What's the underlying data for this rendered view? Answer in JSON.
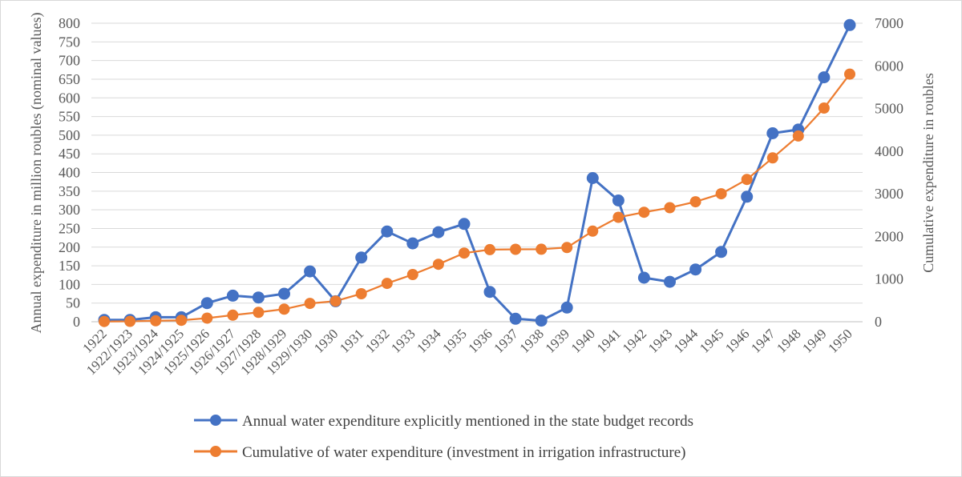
{
  "chart_data": {
    "type": "line",
    "categories": [
      "1922",
      "1922/1923",
      "1923/1924",
      "1924/1925",
      "1925/1926",
      "1926/1927",
      "1927/1928",
      "1928/1929",
      "1929/1930",
      "1930",
      "1931",
      "1932",
      "1933",
      "1934",
      "1935",
      "1936",
      "1937",
      "1938",
      "1939",
      "1940",
      "1941",
      "1942",
      "1943",
      "1944",
      "1945",
      "1946",
      "1947",
      "1948",
      "1949",
      "1950"
    ],
    "series": [
      {
        "name": "Annual water expenditure explicitly mentioned in the state budget records",
        "axis": "left",
        "color": "#4472c4",
        "values": [
          5,
          5,
          12,
          12,
          50,
          70,
          65,
          75,
          135,
          55,
          172,
          242,
          210,
          240,
          262,
          80,
          8,
          3,
          38,
          385,
          325,
          118,
          107,
          140,
          187,
          335,
          505,
          515,
          655,
          795
        ]
      },
      {
        "name": "Cumulative of water expenditure (investment in irrigation infrastructure)",
        "axis": "right",
        "color": "#ed7d31",
        "values": [
          5,
          10,
          22,
          34,
          84,
          154,
          219,
          294,
          429,
          484,
          656,
          898,
          1108,
          1348,
          1610,
          1690,
          1698,
          1701,
          1739,
          2124,
          2449,
          2567,
          2674,
          2814,
          3001,
          3336,
          3841,
          4356,
          5011,
          5806
        ]
      }
    ],
    "y_left": {
      "label": "Annual expenditure in million roubles (nominal values)",
      "ylim": [
        0,
        800
      ],
      "ticks": [
        "0",
        "50",
        "100",
        "150",
        "200",
        "250",
        "300",
        "350",
        "400",
        "450",
        "500",
        "550",
        "600",
        "650",
        "700",
        "750",
        "800"
      ]
    },
    "y_right": {
      "label": "Cumulative expenditure in roubles",
      "ylim": [
        0,
        7000
      ],
      "ticks": [
        "0",
        "1000",
        "2000",
        "3000",
        "4000",
        "5000",
        "6000",
        "7000"
      ]
    },
    "grid": true,
    "legend_position": "bottom"
  }
}
